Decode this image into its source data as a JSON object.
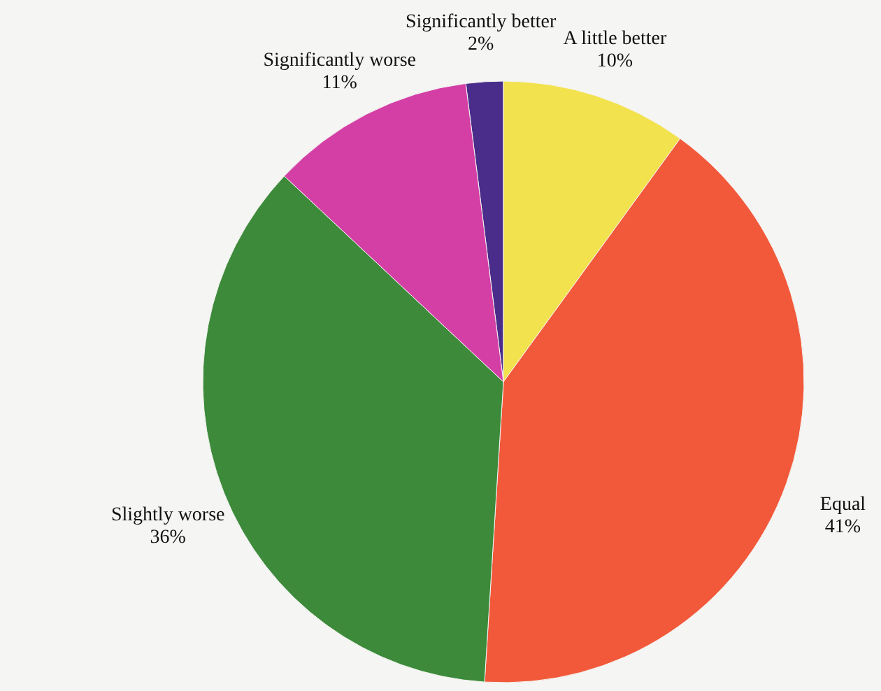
{
  "chart_data": {
    "type": "pie",
    "categories": [
      "Significantly better",
      "A little better",
      "Equal",
      "Slightly worse",
      "Significantly worse"
    ],
    "values": [
      2,
      10,
      41,
      36,
      11
    ],
    "value_labels": [
      "2%",
      "10%",
      "41%",
      "36%",
      "11%"
    ],
    "colors": [
      "#4a2c8a",
      "#f2e24e",
      "#f2593a",
      "#3c8a3a",
      "#d43fa6"
    ],
    "legend": false
  }
}
